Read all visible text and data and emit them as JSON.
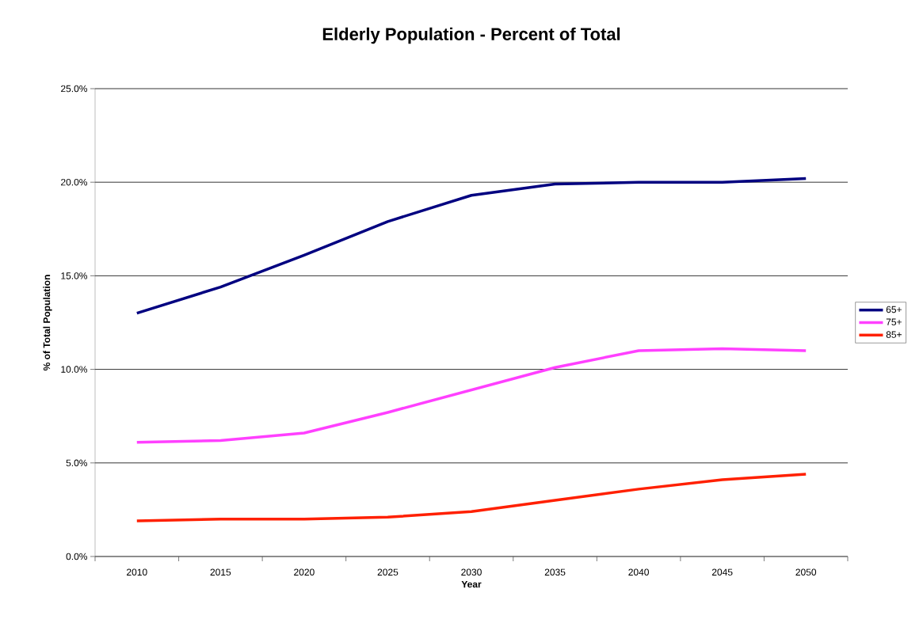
{
  "chart_data": {
    "type": "line",
    "title": "Elderly Population - Percent of Total",
    "xlabel": "Year",
    "ylabel": "% of Total Population",
    "categories": [
      "2010",
      "2015",
      "2020",
      "2025",
      "2030",
      "2035",
      "2040",
      "2045",
      "2050"
    ],
    "series": [
      {
        "name": "65+",
        "color": "#000080",
        "values": [
          13.0,
          14.4,
          16.1,
          17.9,
          19.3,
          19.9,
          20.0,
          20.0,
          20.2
        ]
      },
      {
        "name": "75+",
        "color": "#ff40ff",
        "values": [
          6.1,
          6.2,
          6.6,
          7.7,
          8.9,
          10.1,
          11.0,
          11.1,
          11.0
        ]
      },
      {
        "name": "85+",
        "color": "#ff2000",
        "values": [
          1.9,
          2.0,
          2.0,
          2.1,
          2.4,
          3.0,
          3.6,
          4.1,
          4.4
        ]
      }
    ],
    "ylim": [
      0,
      25
    ],
    "yticks": [
      {
        "value": 0,
        "label": "0.0%"
      },
      {
        "value": 5,
        "label": "5.0%"
      },
      {
        "value": 10,
        "label": "10.0%"
      },
      {
        "value": 15,
        "label": "15.0%"
      },
      {
        "value": 20,
        "label": "20.0%"
      },
      {
        "value": 25,
        "label": "25.0%"
      }
    ],
    "grid": "y",
    "legend": "right",
    "marker": "none",
    "line_style": "solid"
  }
}
